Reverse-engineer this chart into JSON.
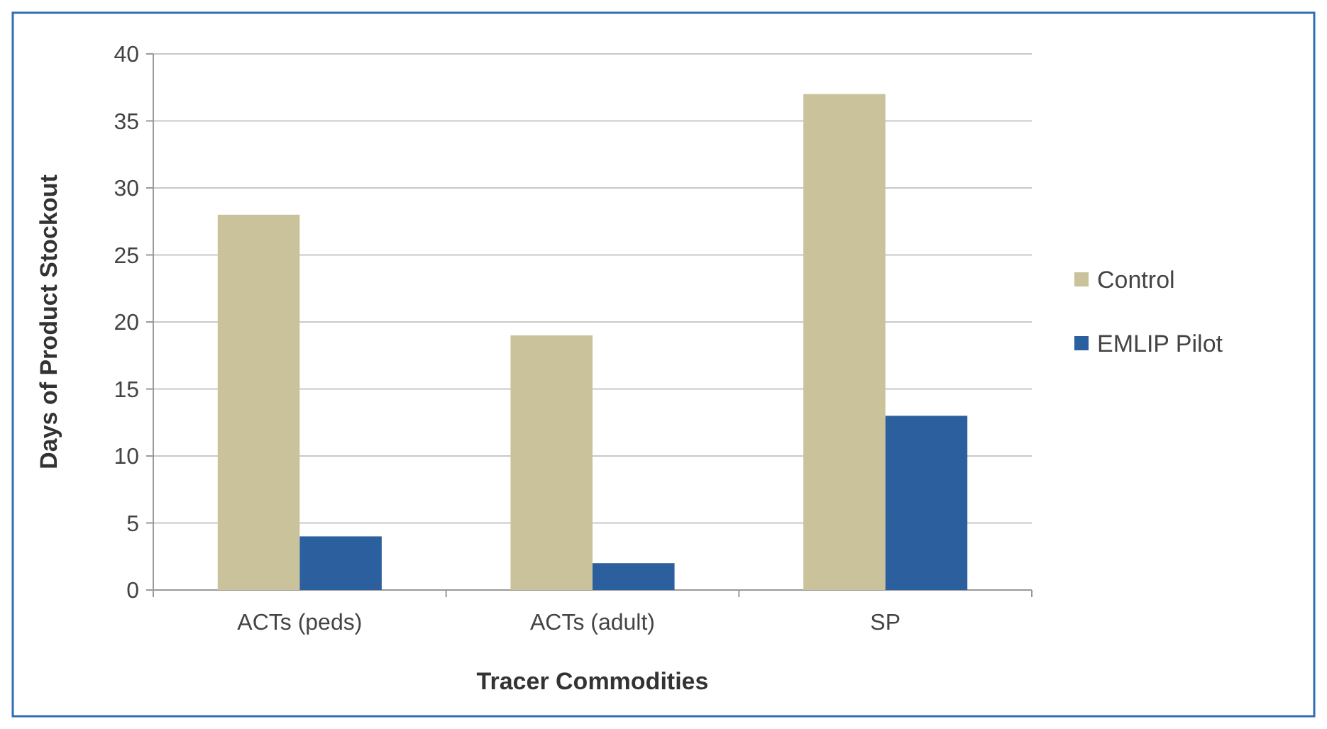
{
  "chart_data": {
    "type": "bar",
    "xlabel": "Tracer Commodities",
    "ylabel": "Days of Product Stockout",
    "categories": [
      "ACTs (peds)",
      "ACTs (adult)",
      "SP"
    ],
    "series": [
      {
        "name": "Control",
        "color": "#c9c29a",
        "values": [
          28,
          19,
          37
        ]
      },
      {
        "name": "EMLIP Pilot",
        "color": "#2b5f9e",
        "values": [
          4,
          2,
          13
        ]
      }
    ],
    "ylim": [
      0,
      40
    ],
    "yticks": [
      0,
      5,
      10,
      15,
      20,
      25,
      30,
      35,
      40
    ],
    "grid": "y",
    "legend": "right"
  }
}
